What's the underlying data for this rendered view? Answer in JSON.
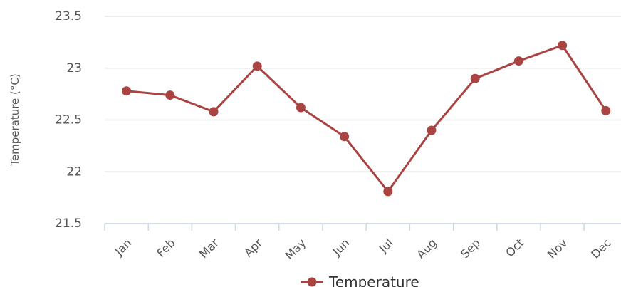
{
  "chart_data": {
    "type": "line",
    "y_axis_label": "Temperature (°C)",
    "categories": [
      "Jan",
      "Feb",
      "Mar",
      "Apr",
      "May",
      "Jun",
      "Jul",
      "Aug",
      "Sep",
      "Oct",
      "Nov",
      "Dec"
    ],
    "series": [
      {
        "name": "Temperature",
        "color": "#a94442",
        "values": [
          22.78,
          22.74,
          22.58,
          23.02,
          22.62,
          22.34,
          21.81,
          22.4,
          22.9,
          23.07,
          23.22,
          22.59
        ]
      }
    ],
    "ylim": [
      21.5,
      23.5
    ],
    "yticks": [
      21.5,
      22,
      22.5,
      23,
      23.5
    ],
    "grid": true
  }
}
